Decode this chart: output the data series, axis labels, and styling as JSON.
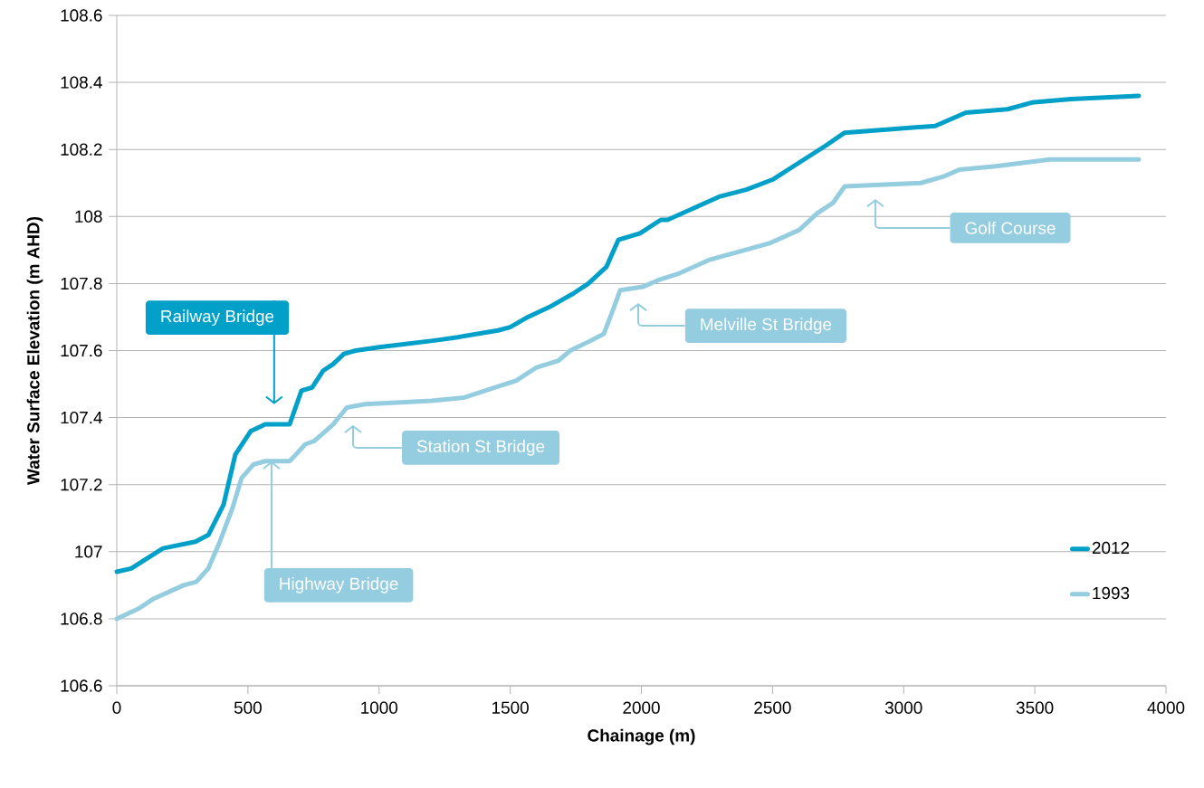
{
  "chart_data": {
    "type": "line",
    "xlabel": "Chainage (m)",
    "ylabel": "Water Surface Elevation (m AHD)",
    "xlim": [
      0,
      4000
    ],
    "ylim": [
      106.6,
      108.6
    ],
    "xticks": [
      0,
      500,
      1000,
      1500,
      2000,
      2500,
      3000,
      3500,
      4000
    ],
    "yticks": [
      106.6,
      106.8,
      107,
      107.2,
      107.4,
      107.6,
      107.8,
      108,
      108.2,
      108.4,
      108.6
    ],
    "grid": "y",
    "legend": "bottom right",
    "marker": "none",
    "line_style": "solid",
    "series": [
      {
        "name": "2012",
        "color": "#00a0c8",
        "x": [
          0,
          55,
          176,
          300,
          349,
          407,
          452,
          511,
          566,
          659,
          704,
          745,
          787,
          825,
          866,
          911,
          1000,
          1211,
          1300,
          1453,
          1500,
          1567,
          1650,
          1695,
          1740,
          1798,
          1867,
          1912,
          1995,
          2074,
          2100,
          2300,
          2400,
          2500,
          2600,
          2700,
          2775,
          3120,
          3237,
          3396,
          3489,
          3638,
          3896
        ],
        "values": [
          106.94,
          106.95,
          107.01,
          107.03,
          107.05,
          107.14,
          107.29,
          107.36,
          107.38,
          107.38,
          107.48,
          107.49,
          107.54,
          107.56,
          107.59,
          107.6,
          107.61,
          107.63,
          107.64,
          107.66,
          107.67,
          107.7,
          107.73,
          107.75,
          107.77,
          107.8,
          107.85,
          107.93,
          107.95,
          107.99,
          107.99,
          108.06,
          108.08,
          108.11,
          108.16,
          108.21,
          108.25,
          108.27,
          108.31,
          108.32,
          108.34,
          108.35,
          108.36
        ]
      },
      {
        "name": "1993",
        "color": "#94cde0",
        "x": [
          0,
          83,
          141,
          255,
          303,
          349,
          393,
          441,
          476,
          521,
          566,
          659,
          683,
          718,
          752,
          797,
          825,
          877,
          946,
          1200,
          1325,
          1443,
          1522,
          1601,
          1684,
          1729,
          1808,
          1857,
          1891,
          1919,
          2005,
          2064,
          2143,
          2257,
          2395,
          2488,
          2602,
          2671,
          2730,
          2775,
          3065,
          3155,
          3213,
          3351,
          3558,
          3896
        ],
        "values": [
          106.8,
          106.83,
          106.86,
          106.9,
          106.91,
          106.95,
          107.03,
          107.13,
          107.22,
          107.26,
          107.27,
          107.27,
          107.29,
          107.32,
          107.33,
          107.36,
          107.38,
          107.43,
          107.44,
          107.45,
          107.46,
          107.49,
          107.51,
          107.55,
          107.57,
          107.6,
          107.63,
          107.65,
          107.72,
          107.78,
          107.79,
          107.81,
          107.83,
          107.87,
          107.9,
          107.92,
          107.96,
          108.01,
          108.04,
          108.09,
          108.1,
          108.12,
          108.14,
          108.15,
          108.17,
          108.17
        ]
      }
    ],
    "annotations": [
      "Railway Bridge",
      {
        "text": "Highway Bridge",
        "x": 590,
        "y": 107.27
      },
      "Station St Bridge",
      "Melville St Bridge",
      "Golf Course"
    ]
  }
}
